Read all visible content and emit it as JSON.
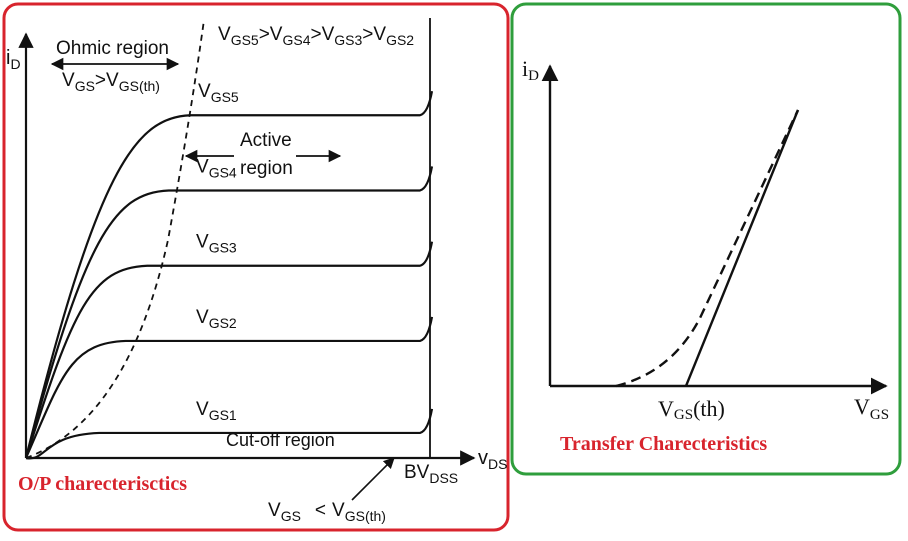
{
  "chart_data": [
    {
      "type": "line",
      "caption": "O/P charecterisctics",
      "xlabel_main": "v",
      "xlabel_sub": "DS",
      "ylabel_main": "i",
      "ylabel_sub": "D",
      "ohmic_label": "Ohmic region",
      "ohmic_cond": {
        "v1": "V",
        "s1": "GS",
        "op": ">",
        "v2": "V",
        "s2": "GS(th)"
      },
      "order_label": [
        {
          "main": "V",
          "sub": "GS5"
        },
        {
          "main": ">V",
          "sub": "GS4"
        },
        {
          "main": ">V",
          "sub": "GS3"
        },
        {
          "main": ">V",
          "sub": "GS2"
        }
      ],
      "active_label": [
        "Active",
        "region"
      ],
      "cutoff_label": "Cut-off region",
      "bv_label": {
        "main": "BV",
        "sub": "DSS"
      },
      "cutoff_cond": {
        "v1": "V",
        "s1": "GS",
        "op": "<",
        "v2": "V",
        "s2": "GS(th)"
      },
      "series": [
        {
          "main": "V",
          "sub": "GS5",
          "level": 0.82
        },
        {
          "main": "V",
          "sub": "GS4",
          "level": 0.64
        },
        {
          "main": "V",
          "sub": "GS3",
          "level": 0.46
        },
        {
          "main": "V",
          "sub": "GS2",
          "level": 0.28
        },
        {
          "main": "V",
          "sub": "GS1",
          "level": 0.06
        }
      ]
    },
    {
      "type": "line",
      "caption": "Transfer Charecteristics",
      "xlabel_main": "V",
      "xlabel_sub": "GS",
      "ylabel_main": "i",
      "ylabel_sub": "D",
      "threshold_label": {
        "main": "V",
        "sub": "GS",
        "suffix": "(th)"
      }
    }
  ]
}
